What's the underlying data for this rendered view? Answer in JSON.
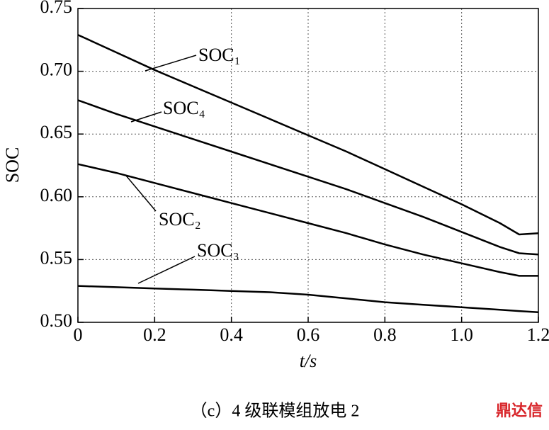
{
  "chart_data": {
    "type": "line",
    "caption": "（c）4 级联模组放电 2",
    "watermark": "鼎达信",
    "xlabel": "t/s",
    "ylabel": "SOC",
    "x": [
      0,
      0.1,
      0.2,
      0.3,
      0.4,
      0.5,
      0.6,
      0.7,
      0.8,
      0.9,
      1.0,
      1.1,
      1.15,
      1.2
    ],
    "series": [
      {
        "name": "SOC₁",
        "color": "#000000",
        "values": [
          0.729,
          0.715,
          0.701,
          0.688,
          0.675,
          0.662,
          0.649,
          0.636,
          0.622,
          0.608,
          0.594,
          0.579,
          0.57,
          0.571
        ]
      },
      {
        "name": "SOC₂",
        "color": "#000000",
        "values": [
          0.626,
          0.619,
          0.611,
          0.603,
          0.595,
          0.587,
          0.579,
          0.571,
          0.562,
          0.554,
          0.547,
          0.54,
          0.537,
          0.537
        ]
      },
      {
        "name": "SOC₃",
        "color": "#000000",
        "values": [
          0.529,
          0.528,
          0.527,
          0.526,
          0.525,
          0.524,
          0.522,
          0.519,
          0.516,
          0.514,
          0.512,
          0.51,
          0.509,
          0.508
        ]
      },
      {
        "name": "SOC₄",
        "color": "#000000",
        "values": [
          0.677,
          0.666,
          0.656,
          0.646,
          0.636,
          0.626,
          0.616,
          0.606,
          0.595,
          0.584,
          0.572,
          0.56,
          0.555,
          0.554
        ]
      }
    ],
    "xlim": [
      0,
      1.2
    ],
    "xticks": [
      0,
      0.2,
      0.4,
      0.6,
      0.8,
      {
        "value": 1.0,
        "label": "1.0"
      },
      1.2
    ],
    "ylim": [
      0.5,
      0.75
    ],
    "yticks": [
      {
        "value": 0.5,
        "label": "0.50"
      },
      0.55,
      {
        "value": 0.6,
        "label": "0.60"
      },
      0.65,
      {
        "value": 0.7,
        "label": "0.70"
      },
      0.75
    ],
    "grid": true
  }
}
